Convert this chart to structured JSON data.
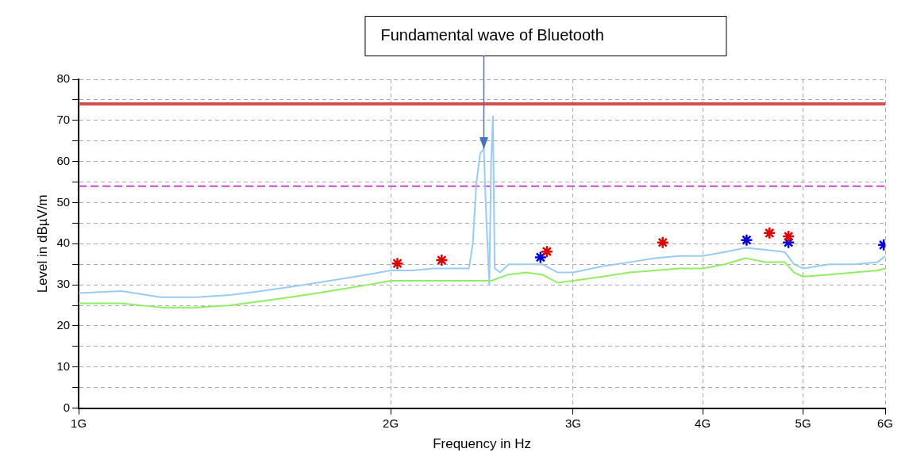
{
  "chart_data": {
    "type": "line",
    "xlabel": "Frequency in Hz",
    "ylabel": "Level in dBµV/m",
    "log": "x",
    "grid": true,
    "xlim": [
      1,
      6
    ],
    "xticks": [
      {
        "value": 1,
        "label": "1G"
      },
      {
        "value": 2,
        "label": "2G"
      },
      {
        "value": 3,
        "label": "3G"
      },
      {
        "value": 4,
        "label": "4G"
      },
      {
        "value": 5,
        "label": "5G"
      },
      {
        "value": 6,
        "label": "6G"
      }
    ],
    "ylim": [
      0,
      80
    ],
    "yticks": [
      0,
      {
        "value": 5,
        "label": null
      },
      10,
      {
        "value": 15,
        "label": null
      },
      20,
      {
        "value": 25,
        "label": null
      },
      30,
      {
        "value": 35,
        "label": null
      },
      40,
      {
        "value": 45,
        "label": null
      },
      50,
      {
        "value": 55,
        "label": null
      },
      60,
      {
        "value": 65,
        "label": null
      },
      70,
      {
        "value": 75,
        "label": null
      },
      80
    ],
    "series": [
      {
        "marker": "none",
        "color": "#99ccf5",
        "x": [
          1,
          1.1,
          1.2,
          1.3,
          1.4,
          1.5,
          1.6,
          1.7,
          1.8,
          1.9,
          2,
          2.1,
          2.2,
          2.3,
          2.38,
          2.4,
          2.42,
          2.44,
          2.46,
          2.47,
          2.48,
          2.49,
          2.5,
          2.51,
          2.52,
          2.55,
          2.6,
          2.7,
          2.8,
          2.9,
          3,
          3.2,
          3.4,
          3.6,
          3.8,
          4,
          4.2,
          4.4,
          4.6,
          4.8,
          4.9,
          5,
          5.3,
          5.6,
          5.9,
          6
        ],
        "values": [
          28,
          28.5,
          27,
          27,
          27.5,
          28.5,
          29.5,
          30.5,
          31.5,
          32.5,
          33.5,
          33.5,
          34,
          34,
          34,
          40,
          55,
          62,
          63,
          50,
          40,
          30,
          60,
          71,
          34,
          33,
          35,
          35,
          35,
          33,
          33,
          34.5,
          35.5,
          36.5,
          37,
          37,
          38,
          39,
          38.5,
          38,
          35,
          34,
          35,
          35,
          35.5,
          37
        ]
      },
      {
        "marker": "none",
        "color": "#90ee60",
        "x": [
          1,
          1.1,
          1.2,
          1.3,
          1.4,
          1.5,
          1.6,
          1.7,
          1.8,
          1.9,
          2,
          2.2,
          2.4,
          2.5,
          2.6,
          2.7,
          2.8,
          2.9,
          3,
          3.2,
          3.4,
          3.6,
          3.8,
          4,
          4.2,
          4.4,
          4.6,
          4.8,
          4.9,
          5,
          5.3,
          5.6,
          5.9,
          6
        ],
        "values": [
          25.5,
          25.5,
          24.5,
          24.5,
          25,
          26,
          27,
          28,
          29,
          30,
          31,
          31,
          31,
          31,
          32.5,
          33,
          32.5,
          30.5,
          31,
          32,
          33,
          33.5,
          34,
          34,
          35,
          36.5,
          35.5,
          35.5,
          33,
          32,
          32.5,
          33,
          33.5,
          34
        ]
      },
      {
        "type": "scatter",
        "marker": "cross",
        "color": "#e00000",
        "x": [
          2.03,
          2.24,
          2.83,
          3.66,
          4.64,
          4.84
        ],
        "values": [
          35.2,
          36,
          38.1,
          40.3,
          42.6,
          41.8
        ]
      },
      {
        "type": "scatter",
        "marker": "cross",
        "color": "#0000e0",
        "x": [
          2.79,
          4.41,
          4.84,
          5.98
        ],
        "values": [
          36.7,
          40.9,
          40.3,
          39.7
        ]
      }
    ],
    "ref_lines": [
      {
        "axis": "y",
        "value": 74,
        "color": "#d05050",
        "line_style": "solid"
      },
      {
        "axis": "y",
        "value": 54,
        "color": "#cc44cc",
        "line_style": "dashed"
      }
    ],
    "annotations": [
      {
        "text": "Fundamental wave of Bluetooth",
        "x": 2.46,
        "y": 63
      }
    ]
  }
}
